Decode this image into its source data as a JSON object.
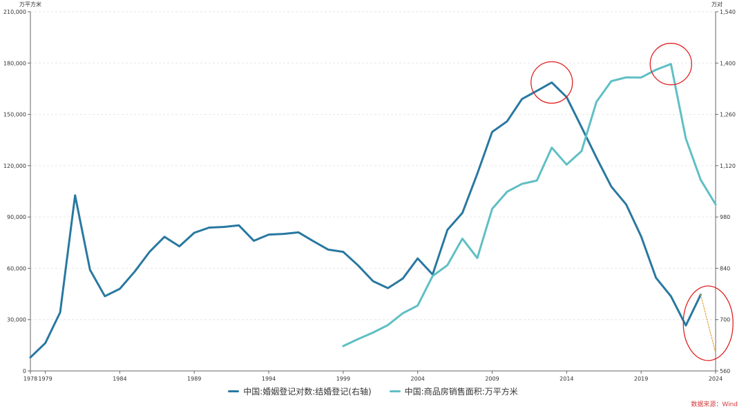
{
  "chart_data": {
    "type": "line",
    "left_unit": "万平方米",
    "right_unit": "万对",
    "x_tick_labels": [
      "1978",
      "1979",
      "1984",
      "1989",
      "1994",
      "1999",
      "2004",
      "2009",
      "2014",
      "2019",
      "2024"
    ],
    "xlim": [
      1978,
      2024
    ],
    "ylim_left": [
      0,
      210000
    ],
    "yticks_left": [
      "0",
      "30,000",
      "60,000",
      "90,000",
      "120,000",
      "150,000",
      "180,000",
      "210,000"
    ],
    "ylim_right": [
      560,
      1540
    ],
    "yticks_right": [
      "560",
      "700",
      "840",
      "980",
      "1,120",
      "1,260",
      "1,400",
      "1,540"
    ],
    "grid": "horizontal dashed",
    "legend_position": "bottom-center",
    "series": [
      {
        "name": "中国:婚姻登记对数:结婚登记(右轴)",
        "axis": "right",
        "color": "#2878a0",
        "x": [
          1978,
          1979,
          1980,
          1981,
          1982,
          1983,
          1984,
          1985,
          1986,
          1987,
          1988,
          1989,
          1990,
          1991,
          1992,
          1993,
          1994,
          1995,
          1996,
          1997,
          1998,
          1999,
          2000,
          2001,
          2002,
          2003,
          2004,
          2005,
          2006,
          2007,
          2008,
          2009,
          2010,
          2011,
          2012,
          2013,
          2014,
          2015,
          2016,
          2017,
          2018,
          2019,
          2020,
          2021,
          2022,
          2023
        ],
        "values": [
          597,
          636,
          720,
          1039,
          836,
          764,
          784,
          831,
          885,
          926,
          900,
          937,
          951,
          953,
          957,
          915,
          932,
          934,
          938,
          914,
          891,
          885,
          848,
          805,
          786,
          812,
          867,
          823,
          945,
          991,
          1098,
          1212,
          1241,
          1302,
          1324,
          1347,
          1307,
          1225,
          1142,
          1063,
          1014,
          927,
          814,
          764,
          684,
          768
        ]
      },
      {
        "name": "中国:商品房销售面积:万平方米",
        "axis": "left",
        "color": "#5fbfc4",
        "x": [
          1999,
          2000,
          2001,
          2002,
          2003,
          2004,
          2005,
          2006,
          2007,
          2008,
          2009,
          2010,
          2011,
          2012,
          2013,
          2014,
          2015,
          2016,
          2017,
          2018,
          2019,
          2020,
          2021,
          2022,
          2023,
          2024
        ],
        "values": [
          14557,
          18637,
          22412,
          26808,
          33718,
          38232,
          55486,
          61857,
          77355,
          65970,
          94755,
          104765,
          109367,
          111304,
          130551,
          120649,
          128495,
          157349,
          169408,
          171654,
          171558,
          176086,
          179433,
          135837,
          111735,
          97385
        ]
      },
      {
        "name": "",
        "axis": "right",
        "color": "#e8a040",
        "style": "dotted",
        "x": [
          2023,
          2024
        ],
        "values": [
          768,
          609
        ]
      }
    ],
    "annotations": [
      {
        "type": "circle",
        "color": "#e02020",
        "x": 2013,
        "y_right": 1347
      },
      {
        "type": "circle",
        "color": "#e02020",
        "x": 2021,
        "y_left": 179433
      },
      {
        "type": "circle",
        "color": "#e02020",
        "x": 2023.5,
        "y_right": 690
      }
    ]
  },
  "legend": {
    "items": [
      {
        "label": "中国:婚姻登记对数:结婚登记(右轴)",
        "color": "#2878a0"
      },
      {
        "label": "中国:商品房销售面积:万平方米",
        "color": "#5fbfc4"
      }
    ]
  },
  "source": "数据来源：Wind"
}
